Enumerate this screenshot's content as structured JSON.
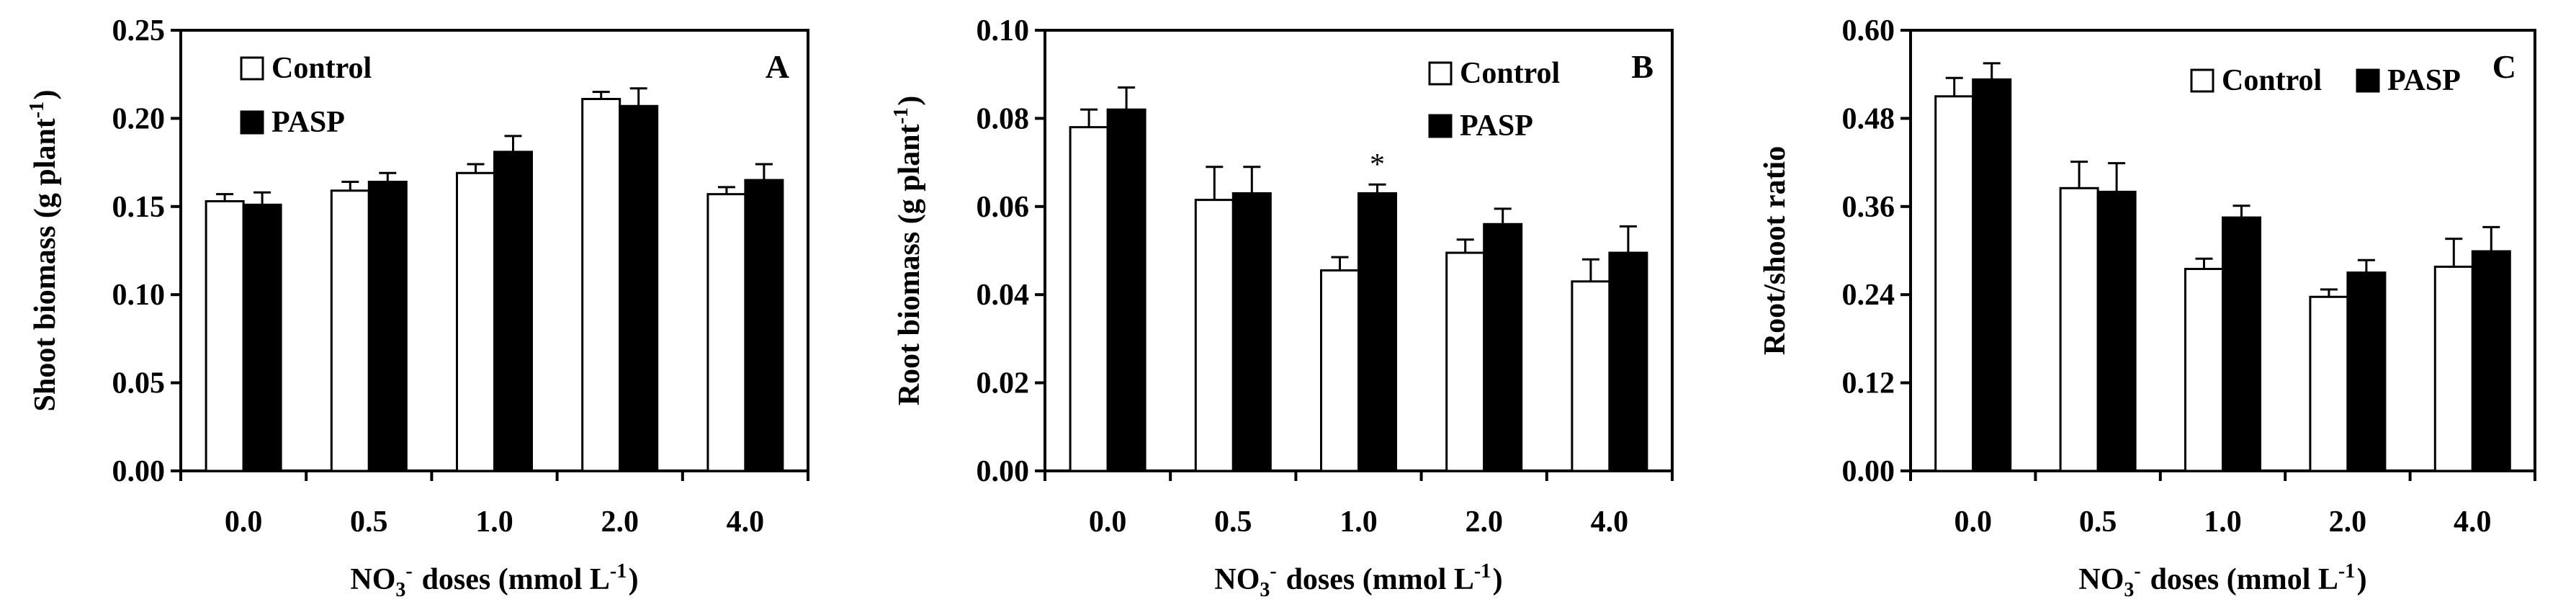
{
  "figure": {
    "panel_labels": [
      "A",
      "B",
      "C"
    ]
  },
  "chart_data": [
    {
      "type": "bar",
      "panel": "A",
      "categories": [
        "0.0",
        "0.5",
        "1.0",
        "2.0",
        "4.0"
      ],
      "series": [
        {
          "name": "Control",
          "fill": "#ffffff",
          "values": [
            0.153,
            0.159,
            0.169,
            0.211,
            0.157
          ],
          "errors": [
            0.004,
            0.005,
            0.005,
            0.004,
            0.004
          ]
        },
        {
          "name": "PASP",
          "fill": "#000000",
          "values": [
            0.151,
            0.164,
            0.181,
            0.207,
            0.165
          ],
          "errors": [
            0.007,
            0.005,
            0.009,
            0.01,
            0.009
          ]
        }
      ],
      "ylabel": "Shoot biomass (g plant-1)",
      "xlabel": "NO3- doses (mmol L-1)",
      "ylim": [
        0,
        0.25
      ],
      "yticks": [
        "0.00",
        "0.05",
        "0.10",
        "0.15",
        "0.20",
        "0.25"
      ],
      "legend": "top-left",
      "annotations": []
    },
    {
      "type": "bar",
      "panel": "B",
      "categories": [
        "0.0",
        "0.5",
        "1.0",
        "2.0",
        "4.0"
      ],
      "series": [
        {
          "name": "Control",
          "fill": "#ffffff",
          "values": [
            0.078,
            0.0615,
            0.0455,
            0.0495,
            0.043
          ],
          "errors": [
            0.004,
            0.0075,
            0.003,
            0.003,
            0.005
          ]
        },
        {
          "name": "PASP",
          "fill": "#000000",
          "values": [
            0.082,
            0.063,
            0.063,
            0.056,
            0.0495
          ],
          "errors": [
            0.005,
            0.006,
            0.002,
            0.0035,
            0.006
          ]
        }
      ],
      "ylabel": "Root biomass (g plant-1)",
      "xlabel": "NO3- doses (mmol L-1)",
      "ylim": [
        0,
        0.1
      ],
      "yticks": [
        "0.00",
        "0.02",
        "0.04",
        "0.06",
        "0.08",
        "0.10"
      ],
      "legend": "top-right",
      "annotations": [
        {
          "text": "*",
          "category": "1.0",
          "series": "PASP"
        }
      ]
    },
    {
      "type": "bar",
      "panel": "C",
      "categories": [
        "0.0",
        "0.5",
        "1.0",
        "2.0",
        "4.0"
      ],
      "series": [
        {
          "name": "Control",
          "fill": "#ffffff",
          "values": [
            0.51,
            0.385,
            0.275,
            0.237,
            0.278
          ],
          "errors": [
            0.025,
            0.036,
            0.014,
            0.01,
            0.038
          ]
        },
        {
          "name": "PASP",
          "fill": "#000000",
          "values": [
            0.533,
            0.38,
            0.345,
            0.27,
            0.299
          ],
          "errors": [
            0.022,
            0.039,
            0.016,
            0.017,
            0.033
          ]
        }
      ],
      "ylabel": "Root/shoot ratio",
      "xlabel": "NO3- doses (mmol L-1)",
      "ylim": [
        0,
        0.6
      ],
      "yticks": [
        "0.00",
        "0.12",
        "0.24",
        "0.36",
        "0.48",
        "0.60"
      ],
      "legend": "top-right",
      "annotations": []
    }
  ]
}
